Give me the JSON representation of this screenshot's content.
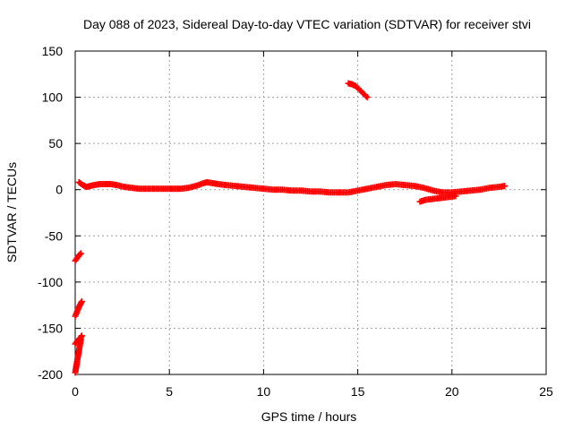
{
  "chart_data": {
    "type": "scatter",
    "title": "Day 088 of 2023, Sidereal Day-to-day VTEC variation (SDTVAR) for receiver stvi",
    "xlabel": "GPS time / hours",
    "ylabel": "SDTVAR / TECUs",
    "xlim": [
      0,
      25
    ],
    "ylim": [
      -200,
      150
    ],
    "xticks": [
      0,
      5,
      10,
      15,
      20,
      25
    ],
    "yticks": [
      -200,
      -150,
      -100,
      -50,
      0,
      50,
      100,
      150
    ],
    "xtick_labels": [
      "0",
      "5",
      "10",
      "15",
      "20",
      "25"
    ],
    "ytick_labels": [
      "-200",
      "-150",
      "-100",
      "-50",
      "0",
      "50",
      "100",
      "150"
    ],
    "grid": true,
    "marker": "+",
    "color": "#ff0000",
    "series": [
      {
        "name": "main",
        "x": [
          0.2,
          0.4,
          0.6,
          0.8,
          1.0,
          1.3,
          1.6,
          1.9,
          2.2,
          2.6,
          3.0,
          3.4,
          3.8,
          4.2,
          4.6,
          5.0,
          5.3,
          5.6,
          6.0,
          6.4,
          6.8,
          7.0,
          7.3,
          7.6,
          8.0,
          8.5,
          9.0,
          9.5,
          10.0,
          10.5,
          11.0,
          11.5,
          12.0,
          12.5,
          13.0,
          13.5,
          14.0,
          14.5,
          15.0,
          15.5,
          16.0,
          16.5,
          17.0,
          17.5,
          18.0,
          18.5,
          19.0,
          19.5,
          20.0,
          20.5,
          21.0,
          21.5,
          22.0,
          22.5,
          22.8
        ],
        "y": [
          8,
          5,
          3,
          4,
          5,
          6,
          6,
          6,
          5,
          3,
          2,
          1,
          1,
          1,
          1,
          1,
          1,
          1,
          2,
          4,
          7,
          8,
          7,
          6,
          5,
          4,
          3,
          2,
          1,
          0,
          0,
          -1,
          -1,
          -2,
          -2,
          -3,
          -3,
          -3,
          -1,
          1,
          3,
          5,
          6,
          5,
          4,
          2,
          -1,
          -3,
          -3,
          -2,
          -1,
          0,
          2,
          3,
          4
        ]
      },
      {
        "name": "lower",
        "x": [
          18.3,
          18.6,
          19.0,
          19.4,
          19.8,
          20.2
        ],
        "y": [
          -13,
          -11,
          -10,
          -9,
          -8,
          -7
        ]
      },
      {
        "name": "arc",
        "x": [
          14.5,
          14.7,
          14.9,
          15.1,
          15.3,
          15.5
        ],
        "y": [
          115,
          114,
          112,
          108,
          104,
          100
        ]
      },
      {
        "name": "early1",
        "x": [
          0.0,
          0.1,
          0.2,
          0.3
        ],
        "y": [
          -77,
          -74,
          -71,
          -69
        ]
      },
      {
        "name": "early2",
        "x": [
          0.0,
          0.1,
          0.2,
          0.3,
          0.35
        ],
        "y": [
          -137,
          -132,
          -127,
          -123,
          -121
        ]
      },
      {
        "name": "early3",
        "x": [
          0.0,
          0.1,
          0.2,
          0.3,
          0.35
        ],
        "y": [
          -167,
          -164,
          -162,
          -160,
          -158
        ]
      },
      {
        "name": "early4",
        "x": [
          0.0,
          0.05,
          0.1,
          0.15,
          0.2,
          0.25,
          0.3
        ],
        "y": [
          -198,
          -192,
          -186,
          -180,
          -174,
          -168,
          -162
        ]
      }
    ]
  }
}
